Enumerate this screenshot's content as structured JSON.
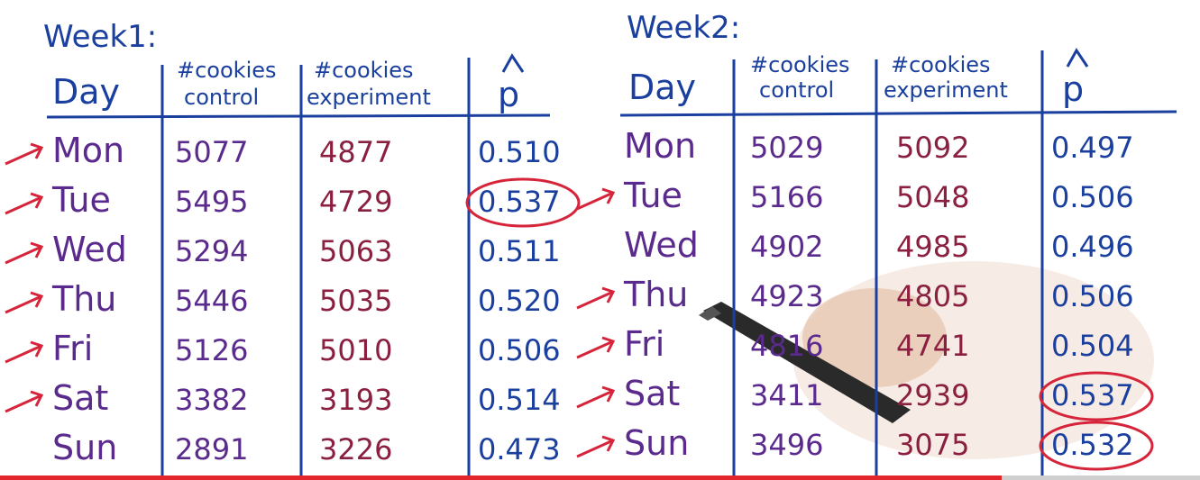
{
  "colors": {
    "ink_blue": "#1a3f9e",
    "ink_purple": "#5a2a8c",
    "ink_red": "#d6243a",
    "ink_maroon": "#8a1f3f"
  },
  "week1": {
    "title": "Week1:",
    "headers": {
      "day": "Day",
      "control": [
        "#cookies",
        "control"
      ],
      "experiment": [
        "#cookies",
        "experiment"
      ],
      "phat": "p"
    },
    "rows": [
      {
        "day": "Mon",
        "control": "5077",
        "experiment": "4877",
        "p": "0.510",
        "arrow": true,
        "circled": false
      },
      {
        "day": "Tue",
        "control": "5495",
        "experiment": "4729",
        "p": "0.537",
        "arrow": true,
        "circled": true
      },
      {
        "day": "Wed",
        "control": "5294",
        "experiment": "5063",
        "p": "0.511",
        "arrow": true,
        "circled": false
      },
      {
        "day": "Thu",
        "control": "5446",
        "experiment": "5035",
        "p": "0.520",
        "arrow": true,
        "circled": false
      },
      {
        "day": "Fri",
        "control": "5126",
        "experiment": "5010",
        "p": "0.506",
        "arrow": true,
        "circled": false
      },
      {
        "day": "Sat",
        "control": "3382",
        "experiment": "3193",
        "p": "0.514",
        "arrow": true,
        "circled": false
      },
      {
        "day": "Sun",
        "control": "2891",
        "experiment": "3226",
        "p": "0.473",
        "arrow": false,
        "circled": false
      }
    ]
  },
  "week2": {
    "title": "Week2:",
    "headers": {
      "day": "Day",
      "control": [
        "#cookies",
        "control"
      ],
      "experiment": [
        "#cookies",
        "experiment"
      ],
      "phat": "p"
    },
    "rows": [
      {
        "day": "Mon",
        "control": "5029",
        "experiment": "5092",
        "p": "0.497",
        "arrow": false,
        "circled": false
      },
      {
        "day": "Tue",
        "control": "5166",
        "experiment": "5048",
        "p": "0.506",
        "arrow": true,
        "circled": false
      },
      {
        "day": "Wed",
        "control": "4902",
        "experiment": "4985",
        "p": "0.496",
        "arrow": false,
        "circled": false
      },
      {
        "day": "Thu",
        "control": "4923",
        "experiment": "4805",
        "p": "0.506",
        "arrow": true,
        "circled": false
      },
      {
        "day": "Fri",
        "control": "4816",
        "experiment": "4741",
        "p": "0.504",
        "arrow": true,
        "circled": false
      },
      {
        "day": "Sat",
        "control": "3411",
        "experiment": "2939",
        "p": "0.537",
        "arrow": true,
        "circled": true
      },
      {
        "day": "Sun",
        "control": "3496",
        "experiment": "3075",
        "p": "0.532",
        "arrow": true,
        "circled": true
      }
    ]
  },
  "video": {
    "progress_fraction": 0.835
  }
}
